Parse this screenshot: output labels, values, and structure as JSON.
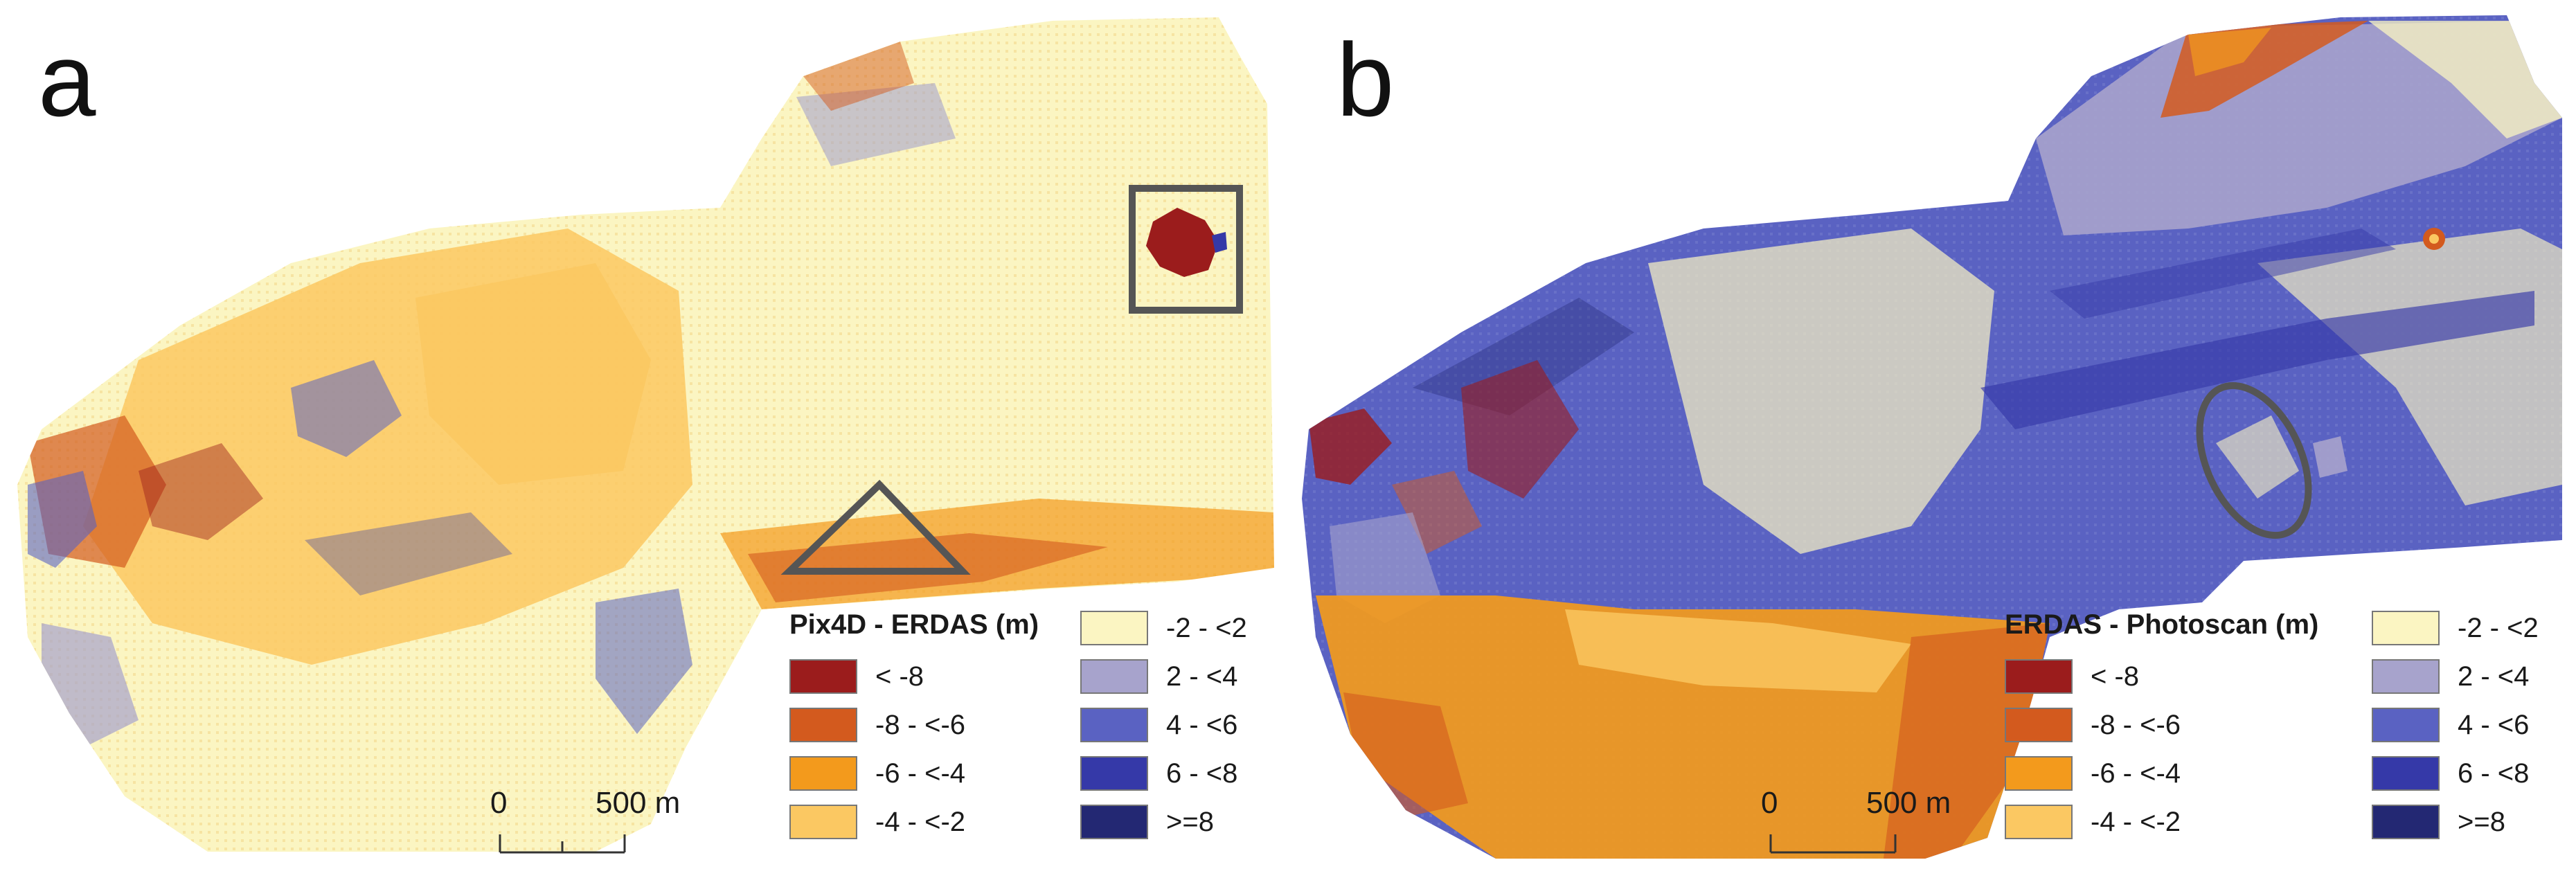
{
  "panels": [
    {
      "letter": "a",
      "legend_title": "Pix4D - ERDAS (m)",
      "scale_zero": "0",
      "scale_end": "500 m",
      "annotations": [
        "square-marker",
        "triangle-marker"
      ]
    },
    {
      "letter": "b",
      "legend_title": "ERDAS - Photoscan (m)",
      "scale_zero": "0",
      "scale_end": "500 m",
      "annotations": [
        "ellipse-marker"
      ]
    }
  ],
  "legend_classes": [
    {
      "label": "< -8",
      "color": "#9b1c1c"
    },
    {
      "label": "-8 - <-6",
      "color": "#d35a1e"
    },
    {
      "label": "-6 - <-4",
      "color": "#f39a1c"
    },
    {
      "label": "-4 - <-2",
      "color": "#fbc862"
    },
    {
      "label": "-2 - <2",
      "color": "#fbf5c2"
    },
    {
      "label": "2 - <4",
      "color": "#a7a3cc"
    },
    {
      "label": "4 - <6",
      "color": "#5a62c2"
    },
    {
      "label": "6 - <8",
      "color": "#3539a8"
    },
    {
      "label": ">=8",
      "color": "#232873"
    }
  ],
  "annotation_color": "#555555"
}
